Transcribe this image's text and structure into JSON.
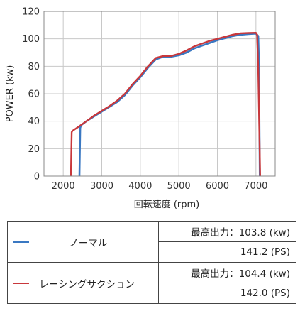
{
  "chart_data": {
    "type": "line",
    "xlabel": "回転速度 (rpm)",
    "ylabel": "POWER (kw)",
    "xlim": [
      1500,
      7500
    ],
    "ylim": [
      0,
      120
    ],
    "xticks": [
      2000,
      3000,
      4000,
      5000,
      6000,
      7000
    ],
    "yticks": [
      0,
      20,
      40,
      60,
      80,
      100,
      120
    ],
    "grid": true,
    "series": [
      {
        "name": "ノーマル",
        "color": "#3a78c2",
        "x": [
          2420,
          2440,
          2460,
          2600,
          2800,
          3000,
          3200,
          3400,
          3600,
          3800,
          4000,
          4200,
          4400,
          4600,
          4800,
          5000,
          5200,
          5400,
          5600,
          5800,
          6000,
          6200,
          6400,
          6600,
          6800,
          7000,
          7060,
          7080,
          7100
        ],
        "y": [
          0,
          35,
          37,
          40,
          43.5,
          47,
          50.5,
          54,
          59,
          66,
          72,
          79,
          85,
          87,
          87,
          88,
          90,
          93,
          95,
          97,
          99,
          100.5,
          102,
          103,
          103.5,
          103.8,
          102,
          80,
          0
        ]
      },
      {
        "name": "レーシングサクション",
        "color": "#c8383c",
        "x": [
          2200,
          2220,
          2240,
          2400,
          2600,
          2800,
          3000,
          3200,
          3400,
          3600,
          3800,
          4000,
          4200,
          4400,
          4600,
          4800,
          5000,
          5200,
          5400,
          5600,
          5800,
          6000,
          6200,
          6400,
          6600,
          6800,
          7000,
          7030,
          7060,
          7110
        ],
        "y": [
          0,
          32,
          33,
          36,
          40,
          44,
          47.5,
          51,
          55,
          60,
          67,
          73,
          80,
          86,
          87.5,
          87.5,
          89,
          91.5,
          94.5,
          96.5,
          98.5,
          100,
          101.5,
          103,
          104,
          104.2,
          104.4,
          103,
          78,
          0
        ]
      }
    ]
  },
  "legend_table": {
    "rows": [
      {
        "name": "ノーマル",
        "max_output": "最高出力：103.8 (kw)",
        "ps": "141.2 (PS)"
      },
      {
        "name": "レーシングサクション",
        "max_output": "最高出力：104.4 (kw)",
        "ps": "142.0 (PS)"
      }
    ]
  }
}
